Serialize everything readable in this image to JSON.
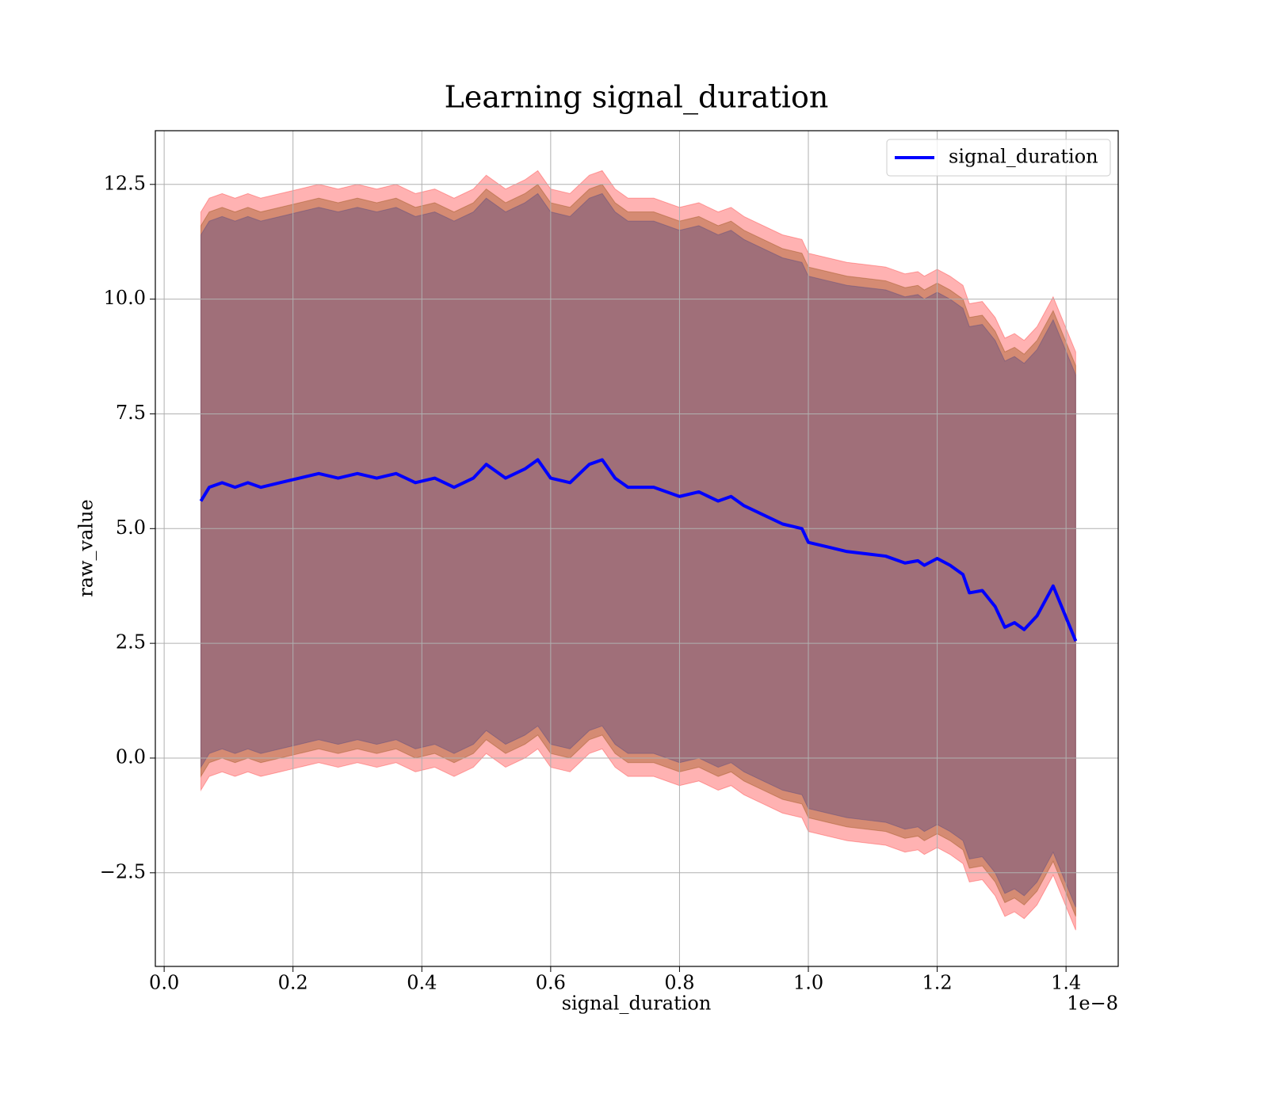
{
  "chart_data": {
    "type": "line",
    "title": "Learning signal_duration",
    "x_label": "signal_duration",
    "y_label": "raw_value",
    "x_offset_label": "1e−8",
    "x": [
      5.7e-10,
      7e-10,
      9e-10,
      1.1e-09,
      1.3e-09,
      1.5e-09,
      1.8e-09,
      2.1e-09,
      2.4e-09,
      2.7e-09,
      3e-09,
      3.3e-09,
      3.6e-09,
      3.9e-09,
      4.2e-09,
      4.5e-09,
      4.8e-09,
      5e-09,
      5.3e-09,
      5.6e-09,
      5.8e-09,
      6e-09,
      6.3e-09,
      6.6e-09,
      6.8e-09,
      7e-09,
      7.2e-09,
      7.6e-09,
      8e-09,
      8.3e-09,
      8.6e-09,
      8.8e-09,
      9e-09,
      9.3e-09,
      9.6e-09,
      9.9e-09,
      1e-08,
      1.03e-08,
      1.06e-08,
      1.09e-08,
      1.12e-08,
      1.15e-08,
      1.17e-08,
      1.18e-08,
      1.2e-08,
      1.22e-08,
      1.24e-08,
      1.25e-08,
      1.27e-08,
      1.29e-08,
      1.305e-08,
      1.32e-08,
      1.335e-08,
      1.355e-08,
      1.38e-08,
      1.415e-08
    ],
    "series": [
      {
        "name": "signal_duration",
        "color": "#0000ff",
        "values": [
          5.6,
          5.9,
          6.0,
          5.9,
          6.0,
          5.9,
          6.0,
          6.1,
          6.2,
          6.1,
          6.2,
          6.1,
          6.2,
          6.0,
          6.1,
          5.9,
          6.1,
          6.4,
          6.1,
          6.3,
          6.5,
          6.1,
          6.0,
          6.4,
          6.5,
          6.1,
          5.9,
          5.9,
          5.7,
          5.8,
          5.6,
          5.7,
          5.5,
          5.3,
          5.1,
          5.0,
          4.7,
          4.6,
          4.5,
          4.45,
          4.4,
          4.25,
          4.3,
          4.2,
          4.35,
          4.2,
          4.0,
          3.6,
          3.65,
          3.3,
          2.85,
          2.95,
          2.8,
          3.1,
          3.75,
          2.55
        ],
        "bands": [
          {
            "color": "#ff0000",
            "opacity": 0.3,
            "halfwidth": 6.3
          },
          {
            "color": "#964f14",
            "opacity": 0.4,
            "halfwidth": 6.0
          },
          {
            "color": "#504682",
            "opacity": 0.4,
            "halfwidth": 5.8
          }
        ]
      }
    ],
    "xlim": [
      -1.37e-10,
      1.481e-08
    ],
    "xticks": [
      {
        "value": 0,
        "label": "0.0"
      },
      {
        "value": 2e-09,
        "label": "0.2"
      },
      {
        "value": 4e-09,
        "label": "0.4"
      },
      {
        "value": 6e-09,
        "label": "0.6"
      },
      {
        "value": 8e-09,
        "label": "0.8"
      },
      {
        "value": 1e-08,
        "label": "1.0"
      },
      {
        "value": 1.2e-08,
        "label": "1.2"
      },
      {
        "value": 1.4e-08,
        "label": "1.4"
      }
    ],
    "ylim": [
      -4.54,
      13.67
    ],
    "yticks": [
      {
        "value": -2.5,
        "label": "−2.5"
      },
      {
        "value": 0,
        "label": "0.0"
      },
      2.5,
      {
        "value": 5,
        "label": "5.0"
      },
      7.5,
      {
        "value": 10,
        "label": "10.0"
      },
      12.5
    ],
    "grid": true,
    "legend": "upper right"
  }
}
